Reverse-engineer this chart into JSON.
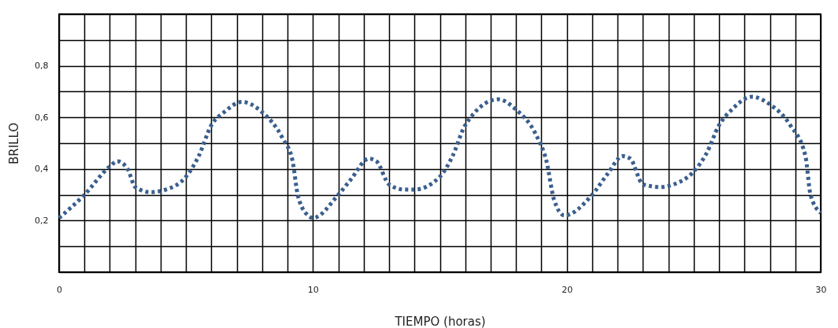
{
  "chart_data": {
    "type": "line",
    "xlabel": "TIEMPO (horas)",
    "ylabel": "BRILLO",
    "x": [
      0,
      1,
      2,
      2.3,
      2.7,
      3.0,
      3.6,
      4.2,
      5,
      5.5,
      6,
      6.5,
      7.2,
      8,
      8.8,
      9.2,
      9.4,
      9.8,
      10,
      11,
      11.5,
      12.2,
      12.5,
      13,
      13.6,
      14,
      15,
      15.5,
      16,
      17.3,
      18,
      18.8,
      19.2,
      19.5,
      19.9,
      21,
      21.6,
      22.2,
      22.5,
      23,
      23.7,
      24.2,
      25,
      25.5,
      26,
      26.5,
      27.3,
      28,
      28.8,
      29.4,
      29.6,
      30
    ],
    "series": [
      {
        "color": "#3a5f8f",
        "values": [
          0.21,
          0.3,
          0.41,
          0.43,
          0.4,
          0.33,
          0.31,
          0.32,
          0.37,
          0.45,
          0.57,
          0.62,
          0.66,
          0.62,
          0.52,
          0.43,
          0.3,
          0.22,
          0.21,
          0.3,
          0.36,
          0.44,
          0.43,
          0.34,
          0.32,
          0.32,
          0.37,
          0.45,
          0.57,
          0.67,
          0.63,
          0.53,
          0.43,
          0.28,
          0.22,
          0.3,
          0.38,
          0.45,
          0.44,
          0.34,
          0.33,
          0.34,
          0.39,
          0.46,
          0.57,
          0.63,
          0.68,
          0.65,
          0.57,
          0.45,
          0.3,
          0.23
        ]
      }
    ],
    "xlim": [
      0,
      30
    ],
    "ylim": [
      0,
      1
    ],
    "xticks": [
      0,
      {
        "value": 1,
        "label": null
      },
      {
        "value": 2,
        "label": null
      },
      {
        "value": 3,
        "label": null
      },
      {
        "value": 4,
        "label": null
      },
      {
        "value": 5,
        "label": null
      },
      {
        "value": 6,
        "label": null
      },
      {
        "value": 7,
        "label": null
      },
      {
        "value": 8,
        "label": null
      },
      {
        "value": 9,
        "label": null
      },
      10,
      {
        "value": 11,
        "label": null
      },
      {
        "value": 12,
        "label": null
      },
      {
        "value": 13,
        "label": null
      },
      {
        "value": 14,
        "label": null
      },
      {
        "value": 15,
        "label": null
      },
      {
        "value": 16,
        "label": null
      },
      {
        "value": 17,
        "label": null
      },
      {
        "value": 18,
        "label": null
      },
      {
        "value": 19,
        "label": null
      },
      20,
      {
        "value": 21,
        "label": null
      },
      {
        "value": 22,
        "label": null
      },
      {
        "value": 23,
        "label": null
      },
      {
        "value": 24,
        "label": null
      },
      {
        "value": 25,
        "label": null
      },
      {
        "value": 26,
        "label": null
      },
      {
        "value": 27,
        "label": null
      },
      {
        "value": 28,
        "label": null
      },
      {
        "value": 29,
        "label": null
      },
      30
    ],
    "yticks": [
      {
        "value": 0,
        "label": null
      },
      {
        "value": 0.1,
        "label": null
      },
      {
        "value": 0.2,
        "label": "0,2"
      },
      {
        "value": 0.3,
        "label": null
      },
      {
        "value": 0.4,
        "label": "0,4"
      },
      {
        "value": 0.5,
        "label": null
      },
      {
        "value": 0.6,
        "label": "0,6"
      },
      {
        "value": 0.7,
        "label": null
      },
      {
        "value": 0.8,
        "label": "0,8"
      },
      {
        "value": 0.9,
        "label": null
      },
      {
        "value": 1,
        "label": null
      }
    ],
    "grid": true,
    "line_style": "dotted",
    "marker": "none",
    "legend": false
  }
}
